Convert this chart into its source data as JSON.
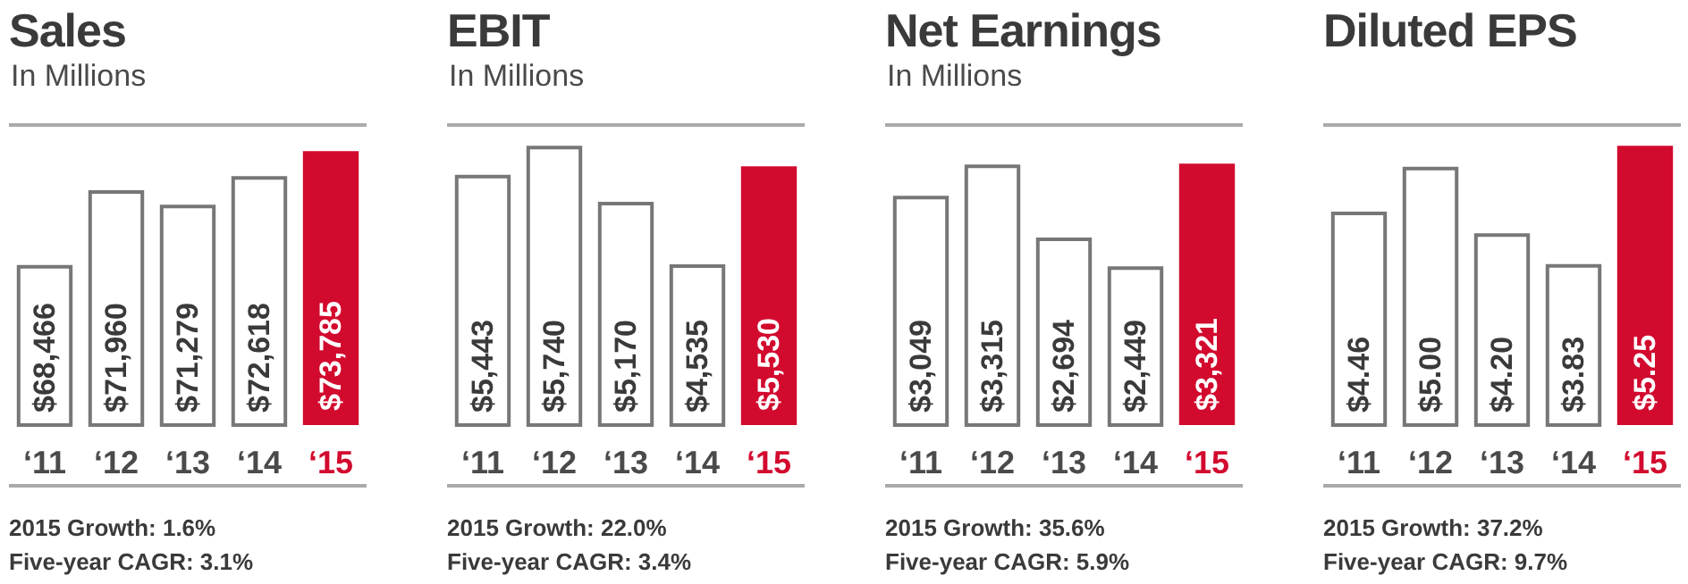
{
  "chart_data": [
    {
      "type": "bar",
      "title": "Sales",
      "subtitle": "In Millions",
      "categories": [
        "‘11",
        "‘12",
        "‘13",
        "‘14",
        "‘15"
      ],
      "values": [
        68466,
        71960,
        71279,
        72618,
        73785
      ],
      "value_labels": [
        "$68,466",
        "$71,960",
        "$71,279",
        "$72,618",
        "$73,785"
      ],
      "colors": [
        "#ffffff",
        "#ffffff",
        "#ffffff",
        "#ffffff",
        "#d20a2e"
      ],
      "ylim": [
        61000,
        75000
      ],
      "tick_labels": "x",
      "annotations": [
        "2015 Growth: 1.6%",
        "Five-year CAGR: 3.1%"
      ]
    },
    {
      "type": "bar",
      "title": "EBIT",
      "subtitle": "In Millions",
      "categories": [
        "‘11",
        "‘12",
        "‘13",
        "‘14",
        "‘15"
      ],
      "values": [
        5443,
        5740,
        5170,
        4535,
        5530
      ],
      "value_labels": [
        "$5,443",
        "$5,740",
        "$5,170",
        "$4,535",
        "$5,530"
      ],
      "colors": [
        "#ffffff",
        "#ffffff",
        "#ffffff",
        "#ffffff",
        "#d20a2e"
      ],
      "ylim": [
        2900,
        5950
      ],
      "tick_labels": "x",
      "annotations": [
        "2015 Growth: 22.0%",
        "Five-year CAGR: 3.4%"
      ]
    },
    {
      "type": "bar",
      "title": "Net Earnings",
      "subtitle": "In Millions",
      "categories": [
        "‘11",
        "‘12",
        "‘13",
        "‘14",
        "‘15"
      ],
      "values": [
        3049,
        3315,
        2694,
        2449,
        3321
      ],
      "value_labels": [
        "$3,049",
        "$3,315",
        "$2,694",
        "$2,449",
        "$3,321"
      ],
      "colors": [
        "#ffffff",
        "#ffffff",
        "#ffffff",
        "#ffffff",
        "#d20a2e"
      ],
      "ylim": [
        1100,
        3650
      ],
      "tick_labels": "x",
      "annotations": [
        "2015 Growth: 35.6%",
        "Five-year CAGR: 5.9%"
      ]
    },
    {
      "type": "bar",
      "title": "Diluted EPS",
      "categories": [
        "‘11",
        "‘12",
        "‘13",
        "‘14",
        "‘15"
      ],
      "values": [
        4.46,
        5.0,
        4.2,
        3.83,
        5.25
      ],
      "value_labels": [
        "$4.46",
        "$5.00",
        "$4.20",
        "$3.83",
        "$5.25"
      ],
      "colors": [
        "#ffffff",
        "#ffffff",
        "#ffffff",
        "#ffffff",
        "#d20a2e"
      ],
      "ylim": [
        1.9,
        5.5
      ],
      "tick_labels": "x",
      "annotations": [
        "2015 Growth: 37.2%",
        "Five-year CAGR: 9.7%"
      ]
    }
  ]
}
